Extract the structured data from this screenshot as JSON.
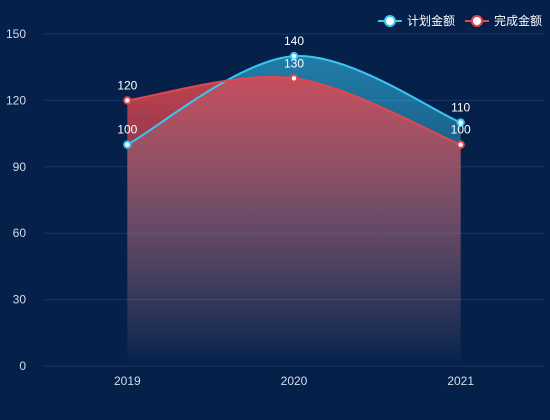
{
  "chart_data": {
    "type": "area",
    "categories": [
      "2019",
      "2020",
      "2021"
    ],
    "series": [
      {
        "name": "计划金额",
        "values": [
          100,
          140,
          110
        ],
        "color": "#38c8f5"
      },
      {
        "name": "完成金额",
        "values": [
          120,
          130,
          100
        ],
        "color": "#e2474f"
      }
    ],
    "ylim": [
      0,
      150
    ],
    "y_ticks": [
      0,
      30,
      60,
      90,
      120,
      150
    ],
    "grid": true,
    "legend_position": "top-right",
    "smooth": true,
    "data_labels": true
  },
  "colors": {
    "background": "#05214a",
    "grid": "#173866",
    "axis_text": "#d4dced",
    "label_text": "#ffffff"
  }
}
